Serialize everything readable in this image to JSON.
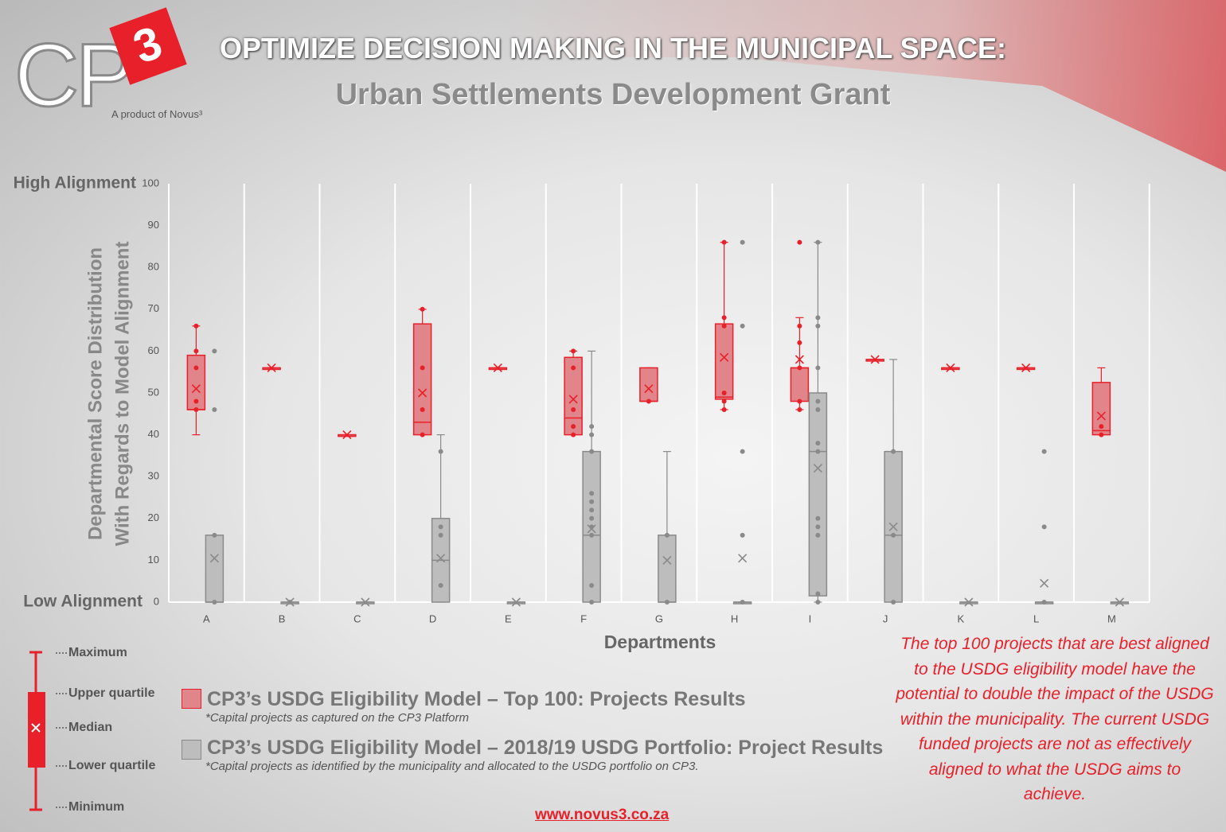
{
  "logo": {
    "mark": "CP",
    "superscript": "3",
    "tagline": "A product of Novus³"
  },
  "header": {
    "title": "OPTIMIZE DECISION MAKING IN THE MUNICIPAL SPACE:",
    "subtitle": "Urban Settlements Development Grant"
  },
  "chart_data": {
    "type": "box",
    "y_title_lines": [
      "Departmental Score Distribution",
      "With Regards to Model Alignment"
    ],
    "y_high_label": "High Alignment",
    "y_low_label": "Low Alignment",
    "x_title": "Departments",
    "categories": [
      "A",
      "B",
      "C",
      "D",
      "E",
      "F",
      "G",
      "H",
      "I",
      "J",
      "K",
      "L",
      "M"
    ],
    "ylim": [
      0,
      100
    ],
    "yticks": [
      0,
      10,
      20,
      30,
      40,
      50,
      60,
      70,
      80,
      90,
      100
    ],
    "series": [
      {
        "name": "CP3’s USDG Eligibility Model – Top 100: Projects Results",
        "note": "*Capital projects as captured on the CP3 Platform",
        "color": "#e8202a",
        "fill": "#e2858a",
        "min": [
          40,
          56,
          40,
          40,
          56,
          40,
          48,
          46,
          46,
          58,
          56,
          56,
          40
        ],
        "q1": [
          46,
          56,
          40,
          40,
          56,
          40,
          48,
          48.5,
          48,
          58,
          56,
          56,
          40
        ],
        "median": [
          46,
          56,
          40,
          43,
          56,
          44,
          48,
          49,
          56,
          58,
          56,
          56,
          41
        ],
        "q3": [
          59,
          56,
          40,
          66.5,
          56,
          58.5,
          56,
          66.5,
          56,
          58,
          56,
          56,
          52.5
        ],
        "max": [
          66,
          56,
          40,
          70,
          56,
          60,
          56,
          86,
          68,
          58,
          56,
          56,
          56
        ],
        "mean": [
          51,
          56,
          40,
          50,
          56,
          48.5,
          51,
          58.5,
          58,
          58,
          56,
          56,
          44.5
        ],
        "points": [
          [
            66,
            60,
            56,
            48,
            46
          ],
          [],
          [],
          [
            70,
            56,
            46,
            40
          ],
          [],
          [
            60,
            56,
            46,
            42,
            40
          ],
          [
            48
          ],
          [
            86,
            68,
            66,
            50,
            48,
            46
          ],
          [
            86,
            66,
            62,
            56,
            48,
            46
          ],
          [],
          [],
          [],
          [
            42,
            40
          ]
        ]
      },
      {
        "name": "CP3’s USDG Eligibility Model – 2018/19 USDG Portfolio: Project Results",
        "note": "*Capital projects as identified by the municipality and allocated to the USDG portfolio on CP3.",
        "color": "#8a8a8a",
        "fill": "#bdbdbd",
        "min": [
          0,
          0,
          0,
          0,
          0,
          0,
          0,
          0,
          0,
          0,
          0,
          0,
          0
        ],
        "q1": [
          0,
          0,
          0,
          0,
          0,
          0,
          0,
          0,
          1.5,
          0,
          0,
          0,
          0
        ],
        "median": [
          0,
          0,
          0,
          10,
          0,
          16,
          0,
          0,
          36,
          16,
          0,
          0,
          0
        ],
        "q3": [
          16,
          0,
          0,
          20,
          0,
          36,
          16,
          0,
          50,
          36,
          0,
          0,
          0
        ],
        "max": [
          16,
          0,
          0,
          40,
          0,
          60,
          36,
          0,
          86,
          58,
          0,
          0,
          0
        ],
        "mean": [
          10.5,
          0,
          0,
          10.5,
          0,
          17.5,
          10,
          10.5,
          32,
          18,
          0,
          4.5,
          0
        ],
        "points": [
          [
            60,
            46,
            16,
            0
          ],
          [
            0
          ],
          [],
          [
            36,
            18,
            16,
            4
          ],
          [],
          [
            42,
            40,
            36,
            26,
            24,
            22,
            20,
            18,
            16,
            4,
            0
          ],
          [
            16,
            0
          ],
          [
            86,
            66,
            36,
            16,
            0
          ],
          [
            86,
            68,
            66,
            56,
            48,
            46,
            38,
            36,
            20,
            18,
            16,
            2,
            0
          ],
          [
            36,
            16,
            0
          ],
          [],
          [
            36,
            18,
            0
          ],
          []
        ]
      }
    ]
  },
  "key": {
    "maximum": "Maximum",
    "upper_quartile": "Upper quartile",
    "median": "Median",
    "lower_quartile": "Lower quartile",
    "minimum": "Minimum"
  },
  "callout": "The top 100 projects that are best aligned to the USDG eligibility model have the potential to double the impact of the USDG within the municipality.  The current USDG funded projects are not as effectively aligned to what the USDG aims to achieve.",
  "footer": {
    "url": "www.novus3.co.za"
  }
}
